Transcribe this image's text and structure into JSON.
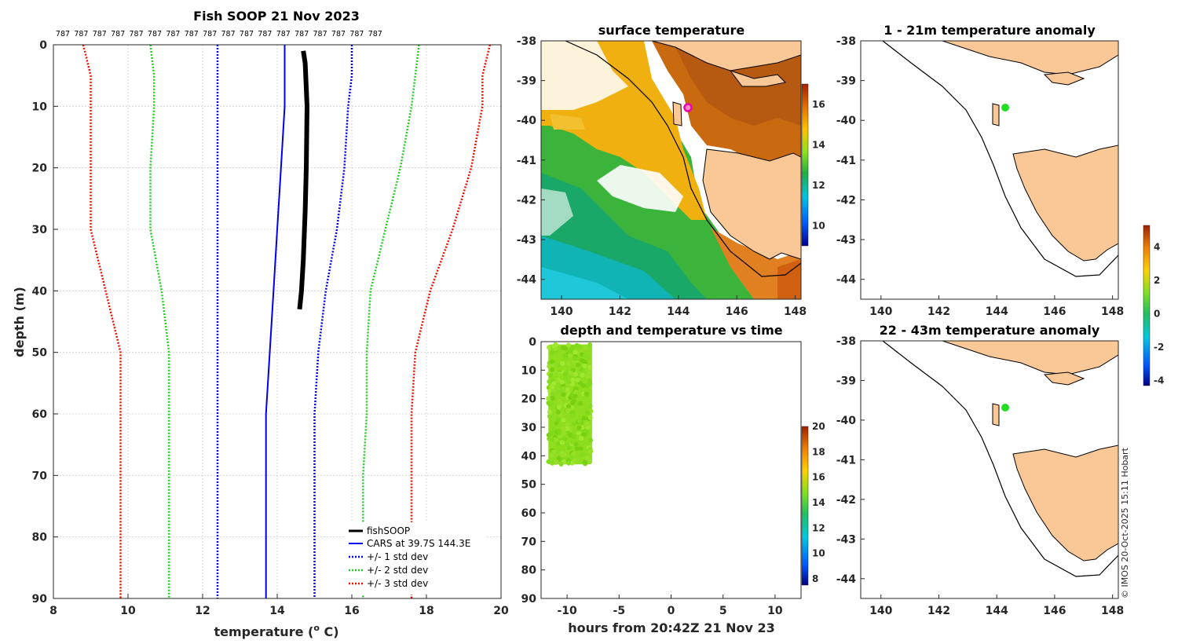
{
  "colors": {
    "fishsoop": "#000000",
    "cars": "#0000ee",
    "std1": "#0000ee",
    "std2": "#22cc22",
    "std3": "#ee1100",
    "land": "#f9c896"
  },
  "profile": {
    "title": "Fish SOOP 21 Nov 2023",
    "count_label": "787",
    "xlabel": "temperature (",
    "xlabel_sup": "o",
    "xlabel_end": " C)",
    "ylabel": "depth (m)",
    "xticks": [
      "8",
      "10",
      "12",
      "14",
      "16",
      "18",
      "20"
    ],
    "yticks": [
      "0",
      "10",
      "20",
      "30",
      "40",
      "50",
      "60",
      "70",
      "80",
      "90"
    ],
    "legend": [
      "fishSOOP",
      "CARS at 39.7S 144.3E",
      "+/- 1 std dev",
      "+/- 2 std dev",
      "+/- 3 std dev"
    ]
  },
  "sst": {
    "title": "surface temperature",
    "xticks": [
      "140",
      "142",
      "144",
      "146",
      "148"
    ],
    "yticks": [
      "-38",
      "-39",
      "-40",
      "-41",
      "-42",
      "-43",
      "-44"
    ],
    "cbar_ticks": [
      "16",
      "14",
      "12",
      "10"
    ]
  },
  "timeplot": {
    "title": "depth and temperature vs time",
    "xlabel": "hours from 20:42Z 21 Nov 23",
    "xticks": [
      "-10",
      "-5",
      "0",
      "5",
      "10"
    ],
    "yticks": [
      "0",
      "10",
      "20",
      "30",
      "40",
      "50",
      "60",
      "70",
      "80",
      "90"
    ],
    "cbar_ticks": [
      "20",
      "18",
      "16",
      "14",
      "12",
      "10",
      "8"
    ]
  },
  "anom1": {
    "title": "1 - 21m temperature anomaly",
    "xticks": [
      "140",
      "142",
      "144",
      "146",
      "148"
    ],
    "yticks": [
      "-38",
      "-39",
      "-40",
      "-41",
      "-42",
      "-43",
      "-44"
    ]
  },
  "anom2": {
    "title": "22 - 43m temperature anomaly",
    "xticks": [
      "140",
      "142",
      "144",
      "146",
      "148"
    ],
    "yticks": [
      "-38",
      "-39",
      "-40",
      "-41",
      "-42",
      "-43",
      "-44"
    ]
  },
  "anom_cbar_ticks": [
    "4",
    "2",
    "0",
    "-2",
    "-4"
  ],
  "credit": "© IMOS 20-Oct-2025 15:11 Hobart",
  "chart_data": [
    {
      "type": "line",
      "title": "Fish SOOP 21 Nov 2023",
      "xlabel": "temperature (o C)",
      "ylabel": "depth (m)",
      "xlim": [
        8,
        20
      ],
      "ylim": [
        90,
        0
      ],
      "depth": [
        0,
        5,
        10,
        20,
        30,
        40,
        50,
        60,
        70,
        80,
        90
      ],
      "series": [
        {
          "name": "fishSOOP",
          "style": "solid-thick",
          "points": [
            [
              14.7,
              1
            ],
            [
              14.75,
              3
            ],
            [
              14.8,
              10
            ],
            [
              14.78,
              20
            ],
            [
              14.75,
              27
            ],
            [
              14.7,
              35
            ],
            [
              14.65,
              40
            ],
            [
              14.6,
              43
            ]
          ]
        },
        {
          "name": "CARS at 39.7S 144.3E",
          "style": "solid",
          "values": [
            14.2,
            14.2,
            14.2,
            14.1,
            14.0,
            13.9,
            13.8,
            13.7,
            13.7,
            13.7,
            13.7
          ]
        },
        {
          "name": "+/- 1 std dev",
          "style": "dotted",
          "color": "blue",
          "lower": [
            12.4,
            12.4,
            12.4,
            12.4,
            12.4,
            12.4,
            12.4,
            12.4,
            12.4,
            12.4,
            12.4
          ],
          "upper": [
            16.0,
            16.0,
            15.9,
            15.8,
            15.6,
            15.3,
            15.1,
            15.0,
            15.0,
            15.0,
            15.0
          ]
        },
        {
          "name": "+/- 2 std dev",
          "style": "dotted",
          "color": "green",
          "lower": [
            10.6,
            10.7,
            10.7,
            10.6,
            10.6,
            10.9,
            11.1,
            11.1,
            11.1,
            11.1,
            11.1
          ],
          "upper": [
            17.8,
            17.7,
            17.6,
            17.3,
            16.9,
            16.5,
            16.4,
            16.4,
            16.3,
            16.3,
            16.3
          ]
        },
        {
          "name": "+/- 3 std dev",
          "style": "dotted",
          "color": "red",
          "lower": [
            8.8,
            9.0,
            9.0,
            9.0,
            9.0,
            9.4,
            9.8,
            9.8,
            9.8,
            9.8,
            9.8
          ],
          "upper": [
            19.7,
            19.5,
            19.5,
            19.2,
            18.7,
            18.1,
            17.7,
            17.6,
            17.6,
            17.6,
            17.6
          ]
        }
      ]
    },
    {
      "type": "heatmap",
      "title": "surface temperature",
      "xlim": [
        139.3,
        148.2
      ],
      "ylim": [
        -44.5,
        -38
      ],
      "colorbar": {
        "min": 9,
        "max": 17,
        "ticks": [
          10,
          12,
          14,
          16
        ]
      }
    },
    {
      "type": "scatter",
      "title": "depth and temperature vs time",
      "xlabel": "hours from 20:42Z 21 Nov 23",
      "xlim": [
        -12.5,
        12.5
      ],
      "ylim": [
        90,
        0
      ],
      "cluster": {
        "hours": [
          -11.8,
          -7.6
        ],
        "depth": [
          1,
          43
        ],
        "temperature_approx": 14.8
      },
      "colorbar": {
        "min": 7.5,
        "max": 20,
        "ticks": [
          8,
          10,
          12,
          14,
          16,
          18,
          20
        ]
      }
    },
    {
      "type": "scatter",
      "title": "1 - 21m temperature anomaly",
      "xlim": [
        139.3,
        148.2
      ],
      "ylim": [
        -44.5,
        -38
      ],
      "points": [
        {
          "lon": 144.35,
          "lat": -39.72,
          "anomaly": 0.5
        }
      ]
    },
    {
      "type": "scatter",
      "title": "22 - 43m temperature anomaly",
      "xlim": [
        139.3,
        148.2
      ],
      "ylim": [
        -44.5,
        -38
      ],
      "points": [
        {
          "lon": 144.35,
          "lat": -39.72,
          "anomaly": 0.5
        }
      ],
      "colorbar": {
        "min": -4.3,
        "max": 5.3,
        "ticks": [
          4,
          2,
          0,
          -2,
          -4
        ]
      }
    }
  ]
}
